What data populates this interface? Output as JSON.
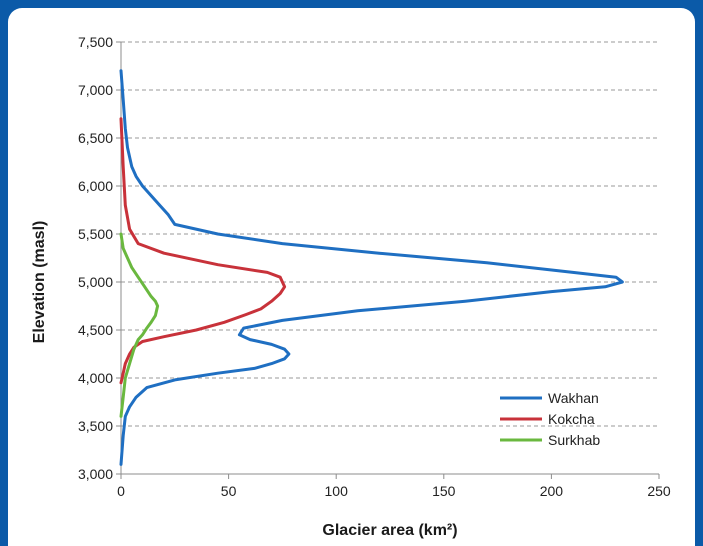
{
  "chart_data": {
    "type": "line",
    "title": "",
    "xlabel": "Glacier area (km²)",
    "ylabel": "Elevation (masl)",
    "xlim": [
      0,
      250
    ],
    "ylim": [
      3000,
      7500
    ],
    "xticks": [
      0,
      50,
      100,
      150,
      200,
      250
    ],
    "xtick_labels": [
      "0",
      "50",
      "100",
      "150",
      "200",
      "250"
    ],
    "yticks": [
      3000,
      3500,
      4000,
      4500,
      5000,
      5500,
      6000,
      6500,
      7000,
      7500
    ],
    "ytick_labels": [
      "3,000",
      "3,500",
      "4,000",
      "4,500",
      "5,000",
      "5,500",
      "6,000",
      "6,500",
      "7,000",
      "7,500"
    ],
    "grid": "horizontal dashed",
    "legend_position": "bottom-right",
    "series": [
      {
        "name": "Wakhan",
        "color": "#1f6fc2",
        "x": [
          0,
          1,
          2,
          4,
          7,
          12,
          25,
          45,
          62,
          70,
          76,
          78,
          76,
          70,
          60,
          55,
          57,
          75,
          110,
          160,
          200,
          225,
          233,
          230,
          210,
          170,
          120,
          75,
          45,
          25,
          22,
          18,
          14,
          10,
          7,
          5,
          3,
          2,
          1,
          0
        ],
        "y": [
          3100,
          3400,
          3600,
          3700,
          3800,
          3900,
          3980,
          4050,
          4100,
          4150,
          4200,
          4250,
          4300,
          4350,
          4400,
          4450,
          4520,
          4600,
          4700,
          4800,
          4900,
          4950,
          5000,
          5050,
          5100,
          5200,
          5300,
          5400,
          5500,
          5600,
          5700,
          5800,
          5900,
          6000,
          6100,
          6200,
          6400,
          6600,
          6900,
          7200
        ]
      },
      {
        "name": "Kokcha",
        "color": "#c8323a",
        "x": [
          0,
          1,
          2,
          4,
          6,
          10,
          20,
          35,
          48,
          58,
          65,
          70,
          74,
          76,
          74,
          68,
          45,
          20,
          8,
          4,
          2,
          1,
          0
        ],
        "y": [
          3950,
          4050,
          4150,
          4250,
          4320,
          4380,
          4430,
          4500,
          4580,
          4660,
          4720,
          4800,
          4880,
          4950,
          5050,
          5100,
          5180,
          5300,
          5400,
          5550,
          5800,
          6200,
          6700
        ]
      },
      {
        "name": "Surkhab",
        "color": "#6ab83f",
        "x": [
          0,
          1,
          2,
          4,
          6,
          8,
          10,
          12,
          14,
          16,
          17,
          16,
          14,
          11,
          8,
          5,
          3,
          1,
          0
        ],
        "y": [
          3600,
          3800,
          4000,
          4150,
          4300,
          4400,
          4450,
          4520,
          4580,
          4650,
          4750,
          4800,
          4850,
          4950,
          5050,
          5150,
          5250,
          5350,
          5500
        ]
      }
    ]
  }
}
